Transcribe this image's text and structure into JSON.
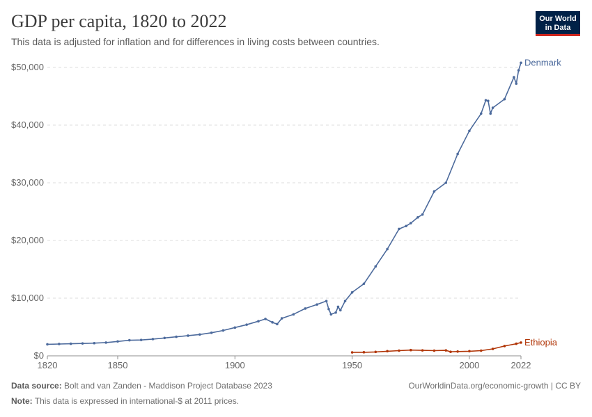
{
  "header": {
    "title": "GDP per capita, 1820 to 2022",
    "subtitle": "This data is adjusted for inflation and for differences in living costs between countries.",
    "logo_line1": "Our World",
    "logo_line2": "in Data"
  },
  "footer": {
    "source_label": "Data source:",
    "source_text": "Bolt and van Zanden - Maddison Project Database 2023",
    "link": "OurWorldinData.org/economic-growth | CC BY",
    "note_label": "Note:",
    "note_text": "This data is expressed in international-$ at 2011 prices."
  },
  "chart_data": {
    "type": "line",
    "title": "GDP per capita, 1820 to 2022",
    "xlim": [
      1820,
      2022
    ],
    "ylim": [
      0,
      50000
    ],
    "x_ticks": [
      1820,
      1850,
      1900,
      1950,
      2000,
      2022
    ],
    "y_ticks": [
      0,
      10000,
      20000,
      30000,
      40000,
      50000
    ],
    "y_tick_labels": [
      "$0",
      "$10,000",
      "$20,000",
      "$30,000",
      "$40,000",
      "$50,000"
    ],
    "grid": "horizontal dashed",
    "legend": "inline labels at line ends",
    "series": [
      {
        "name": "Denmark",
        "color": "#4c6a9c",
        "x": [
          1820,
          1825,
          1830,
          1835,
          1840,
          1845,
          1850,
          1855,
          1860,
          1865,
          1870,
          1875,
          1880,
          1885,
          1890,
          1895,
          1900,
          1905,
          1910,
          1913,
          1916,
          1918,
          1920,
          1925,
          1930,
          1935,
          1939,
          1940,
          1941,
          1943,
          1944,
          1945,
          1947,
          1950,
          1955,
          1960,
          1965,
          1970,
          1973,
          1975,
          1978,
          1980,
          1985,
          1990,
          1995,
          2000,
          2005,
          2007,
          2008,
          2009,
          2010,
          2015,
          2019,
          2020,
          2021,
          2022
        ],
        "y": [
          2000,
          2050,
          2100,
          2150,
          2200,
          2300,
          2500,
          2700,
          2750,
          2900,
          3100,
          3300,
          3500,
          3700,
          4000,
          4400,
          4900,
          5400,
          6000,
          6400,
          5800,
          5500,
          6500,
          7200,
          8200,
          8900,
          9500,
          8100,
          7200,
          7500,
          8500,
          7900,
          9500,
          11000,
          12500,
          15500,
          18500,
          22000,
          22500,
          23000,
          24000,
          24500,
          28500,
          30000,
          35000,
          39000,
          42000,
          44300,
          44200,
          42000,
          43000,
          44500,
          48300,
          47200,
          49500,
          50800
        ]
      },
      {
        "name": "Ethiopia",
        "color": "#b13507",
        "x": [
          1950,
          1955,
          1960,
          1965,
          1970,
          1975,
          1980,
          1985,
          1990,
          1992,
          1995,
          2000,
          2005,
          2010,
          2015,
          2020,
          2022
        ],
        "y": [
          600,
          620,
          680,
          800,
          900,
          1000,
          950,
          900,
          950,
          700,
          750,
          800,
          900,
          1200,
          1700,
          2100,
          2300
        ]
      }
    ]
  }
}
